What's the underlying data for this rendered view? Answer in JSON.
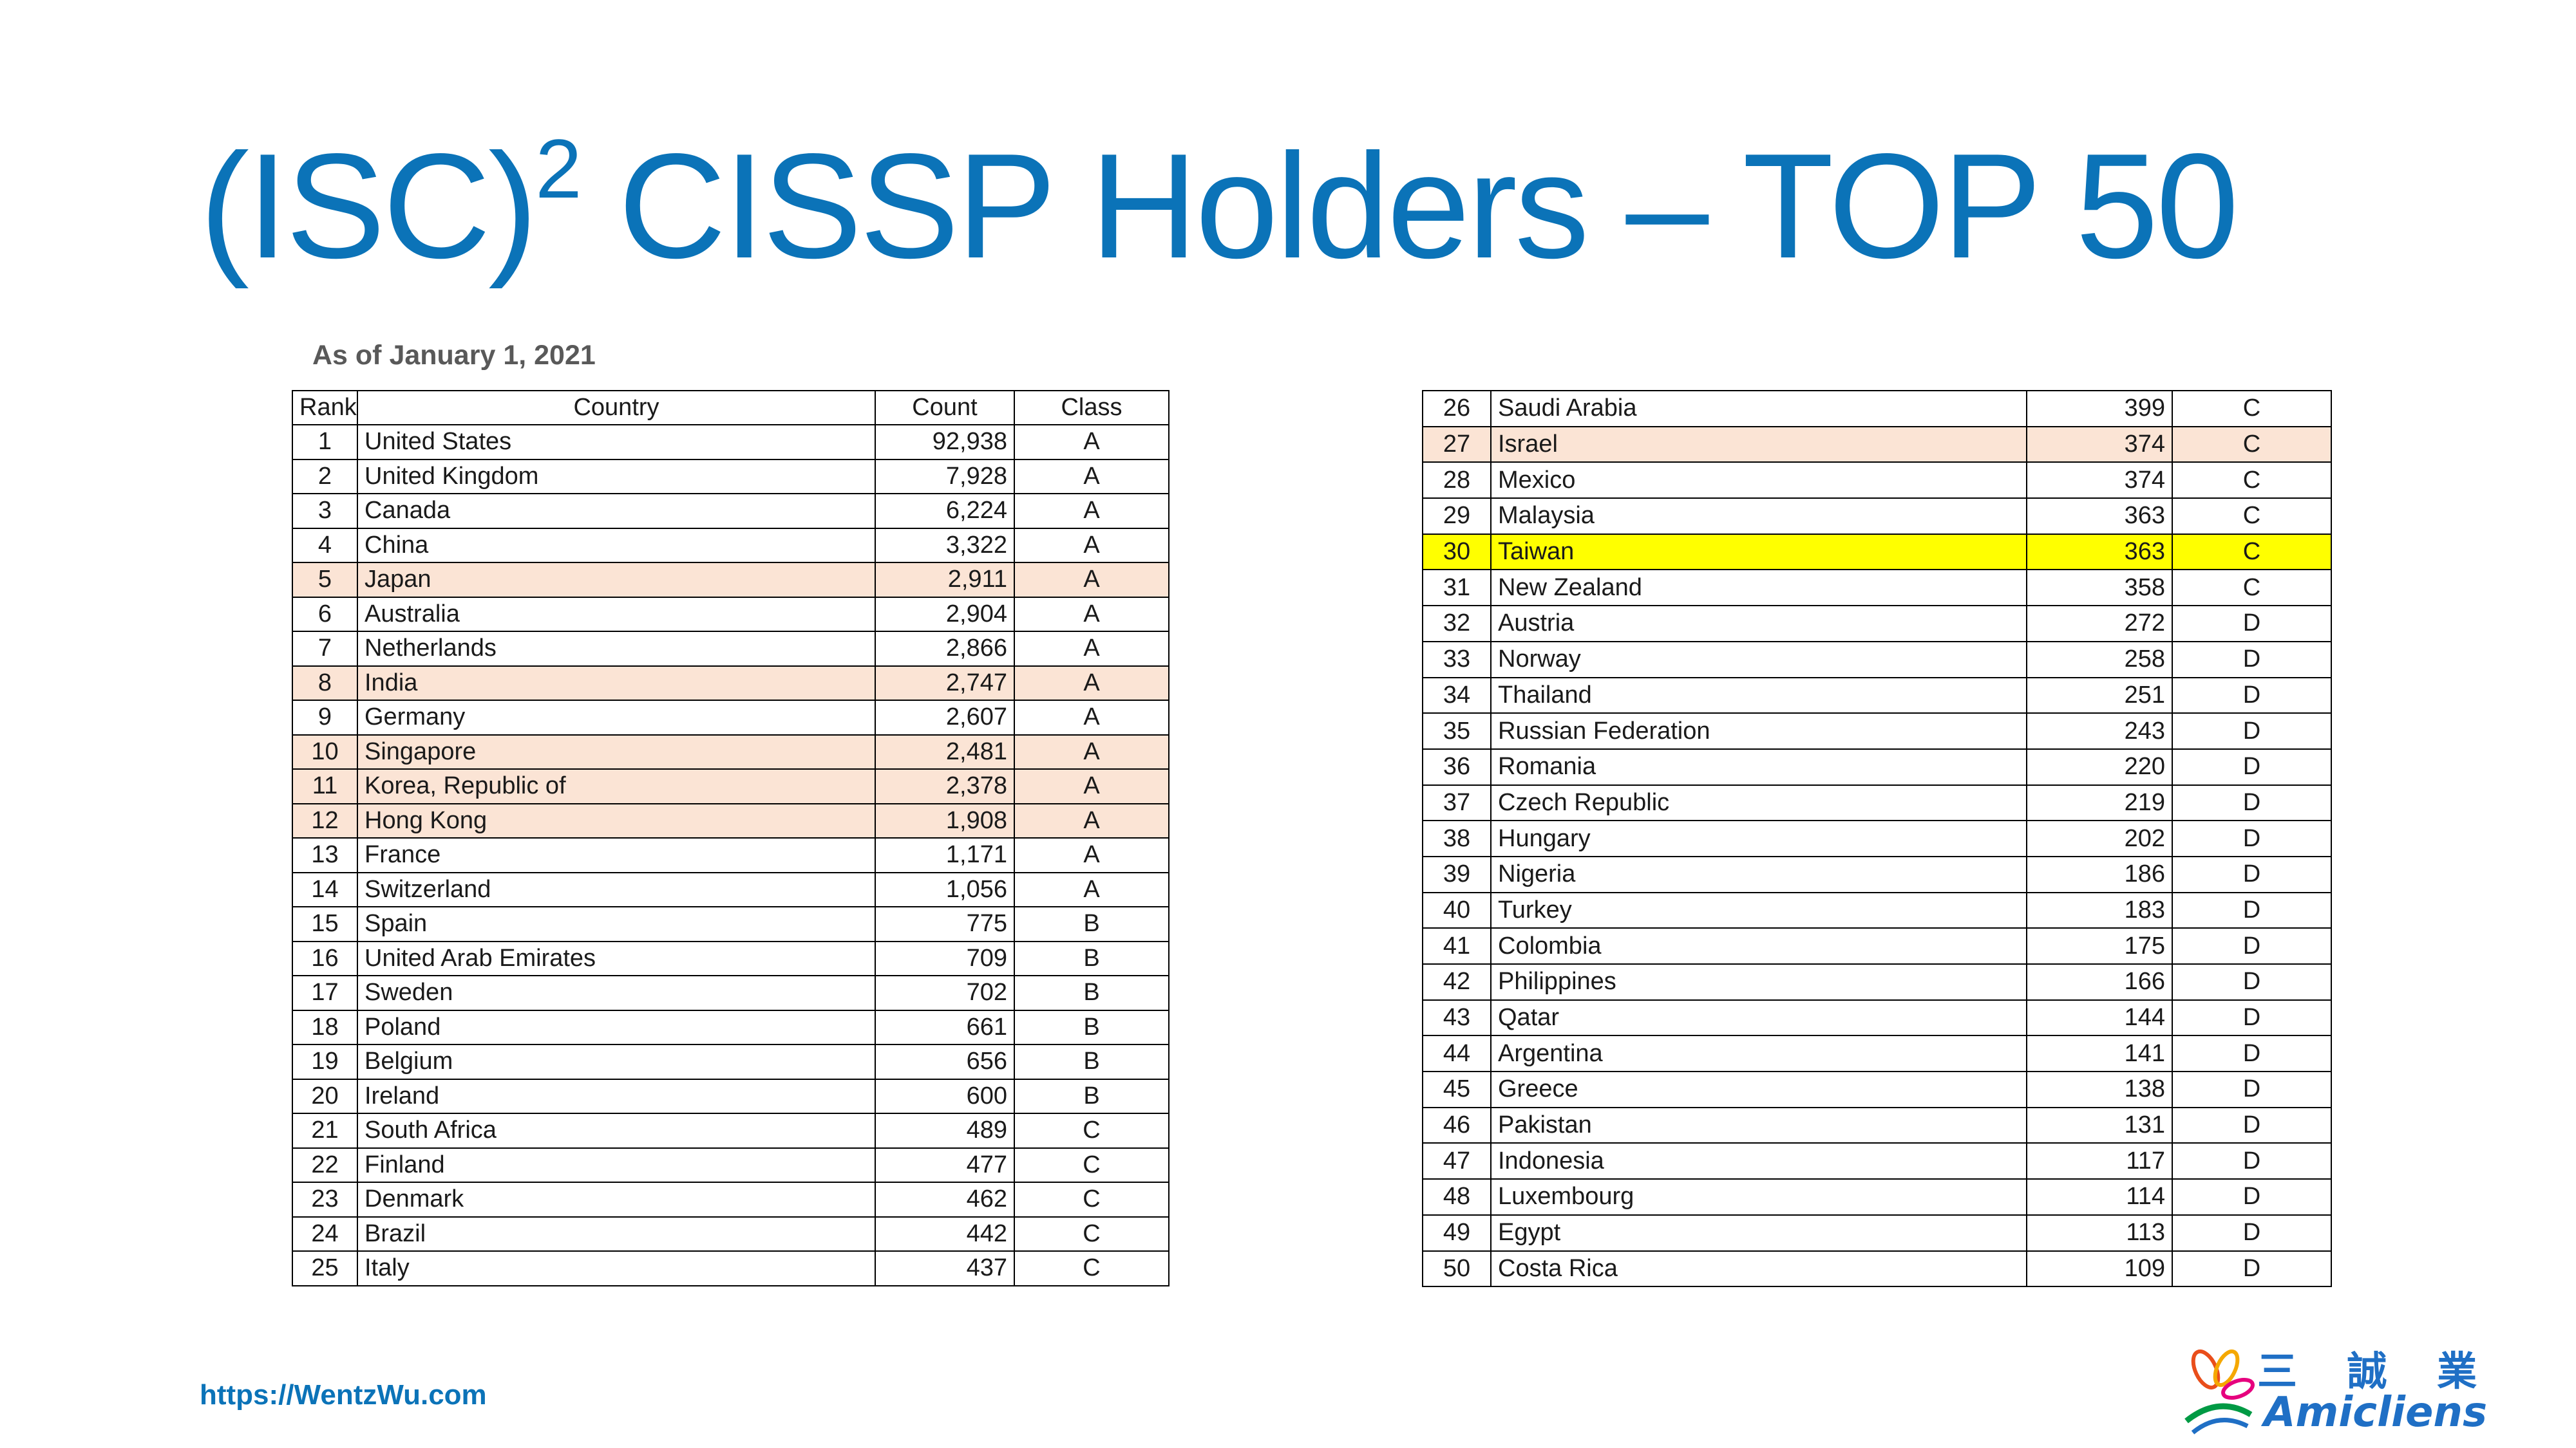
{
  "title": {
    "prefix": "(ISC)",
    "sup": "2",
    "suffix": " CISSP Holders – TOP 50"
  },
  "as_of": "As of  January 1, 2021",
  "table": {
    "headers": {
      "rank": "Rank",
      "country": "Country",
      "count": "Count",
      "class": "Class"
    },
    "highlight_colors": {
      "peach": "#fbe4d5",
      "yellow": "#ffff00"
    },
    "rows": [
      {
        "rank": "1",
        "country": "United States",
        "count": "92,938",
        "class": "A",
        "hl": ""
      },
      {
        "rank": "2",
        "country": "United Kingdom",
        "count": "7,928",
        "class": "A",
        "hl": ""
      },
      {
        "rank": "3",
        "country": "Canada",
        "count": "6,224",
        "class": "A",
        "hl": ""
      },
      {
        "rank": "4",
        "country": "China",
        "count": "3,322",
        "class": "A",
        "hl": ""
      },
      {
        "rank": "5",
        "country": "Japan",
        "count": "2,911",
        "class": "A",
        "hl": "peach"
      },
      {
        "rank": "6",
        "country": "Australia",
        "count": "2,904",
        "class": "A",
        "hl": ""
      },
      {
        "rank": "7",
        "country": "Netherlands",
        "count": "2,866",
        "class": "A",
        "hl": ""
      },
      {
        "rank": "8",
        "country": "India",
        "count": "2,747",
        "class": "A",
        "hl": "peach"
      },
      {
        "rank": "9",
        "country": "Germany",
        "count": "2,607",
        "class": "A",
        "hl": ""
      },
      {
        "rank": "10",
        "country": "Singapore",
        "count": "2,481",
        "class": "A",
        "hl": "peach"
      },
      {
        "rank": "11",
        "country": "Korea, Republic of",
        "count": "2,378",
        "class": "A",
        "hl": "peach"
      },
      {
        "rank": "12",
        "country": "Hong Kong",
        "count": "1,908",
        "class": "A",
        "hl": "peach"
      },
      {
        "rank": "13",
        "country": "France",
        "count": "1,171",
        "class": "A",
        "hl": ""
      },
      {
        "rank": "14",
        "country": "Switzerland",
        "count": "1,056",
        "class": "A",
        "hl": ""
      },
      {
        "rank": "15",
        "country": "Spain",
        "count": "775",
        "class": "B",
        "hl": ""
      },
      {
        "rank": "16",
        "country": "United Arab Emirates",
        "count": "709",
        "class": "B",
        "hl": ""
      },
      {
        "rank": "17",
        "country": "Sweden",
        "count": "702",
        "class": "B",
        "hl": ""
      },
      {
        "rank": "18",
        "country": "Poland",
        "count": "661",
        "class": "B",
        "hl": ""
      },
      {
        "rank": "19",
        "country": "Belgium",
        "count": "656",
        "class": "B",
        "hl": ""
      },
      {
        "rank": "20",
        "country": "Ireland",
        "count": "600",
        "class": "B",
        "hl": ""
      },
      {
        "rank": "21",
        "country": "South Africa",
        "count": "489",
        "class": "C",
        "hl": ""
      },
      {
        "rank": "22",
        "country": "Finland",
        "count": "477",
        "class": "C",
        "hl": ""
      },
      {
        "rank": "23",
        "country": "Denmark",
        "count": "462",
        "class": "C",
        "hl": ""
      },
      {
        "rank": "24",
        "country": "Brazil",
        "count": "442",
        "class": "C",
        "hl": ""
      },
      {
        "rank": "25",
        "country": "Italy",
        "count": "437",
        "class": "C",
        "hl": ""
      },
      {
        "rank": "26",
        "country": "Saudi Arabia",
        "count": "399",
        "class": "C",
        "hl": ""
      },
      {
        "rank": "27",
        "country": "Israel",
        "count": "374",
        "class": "C",
        "hl": "peach"
      },
      {
        "rank": "28",
        "country": "Mexico",
        "count": "374",
        "class": "C",
        "hl": ""
      },
      {
        "rank": "29",
        "country": "Malaysia",
        "count": "363",
        "class": "C",
        "hl": ""
      },
      {
        "rank": "30",
        "country": "Taiwan",
        "count": "363",
        "class": "C",
        "hl": "yellow"
      },
      {
        "rank": "31",
        "country": "New Zealand",
        "count": "358",
        "class": "C",
        "hl": ""
      },
      {
        "rank": "32",
        "country": "Austria",
        "count": "272",
        "class": "D",
        "hl": ""
      },
      {
        "rank": "33",
        "country": "Norway",
        "count": "258",
        "class": "D",
        "hl": ""
      },
      {
        "rank": "34",
        "country": "Thailand",
        "count": "251",
        "class": "D",
        "hl": ""
      },
      {
        "rank": "35",
        "country": "Russian Federation",
        "count": "243",
        "class": "D",
        "hl": ""
      },
      {
        "rank": "36",
        "country": "Romania",
        "count": "220",
        "class": "D",
        "hl": ""
      },
      {
        "rank": "37",
        "country": "Czech Republic",
        "count": "219",
        "class": "D",
        "hl": ""
      },
      {
        "rank": "38",
        "country": "Hungary",
        "count": "202",
        "class": "D",
        "hl": ""
      },
      {
        "rank": "39",
        "country": "Nigeria",
        "count": "186",
        "class": "D",
        "hl": ""
      },
      {
        "rank": "40",
        "country": "Turkey",
        "count": "183",
        "class": "D",
        "hl": ""
      },
      {
        "rank": "41",
        "country": "Colombia",
        "count": "175",
        "class": "D",
        "hl": ""
      },
      {
        "rank": "42",
        "country": "Philippines",
        "count": "166",
        "class": "D",
        "hl": ""
      },
      {
        "rank": "43",
        "country": "Qatar",
        "count": "144",
        "class": "D",
        "hl": ""
      },
      {
        "rank": "44",
        "country": "Argentina",
        "count": "141",
        "class": "D",
        "hl": ""
      },
      {
        "rank": "45",
        "country": "Greece",
        "count": "138",
        "class": "D",
        "hl": ""
      },
      {
        "rank": "46",
        "country": "Pakistan",
        "count": "131",
        "class": "D",
        "hl": ""
      },
      {
        "rank": "47",
        "country": "Indonesia",
        "count": "117",
        "class": "D",
        "hl": ""
      },
      {
        "rank": "48",
        "country": "Luxembourg",
        "count": "114",
        "class": "D",
        "hl": ""
      },
      {
        "rank": "49",
        "country": "Egypt",
        "count": "113",
        "class": "D",
        "hl": ""
      },
      {
        "rank": "50",
        "country": "Costa Rica",
        "count": "109",
        "class": "D",
        "hl": ""
      }
    ]
  },
  "footer": {
    "url": "https://WentzWu.com"
  },
  "logo": {
    "cjk": "三 誠 業",
    "text": "Amicliens",
    "colors": [
      "#e94e1b",
      "#f5a800",
      "#e6007e",
      "#009a44",
      "#1f6fc5"
    ]
  }
}
